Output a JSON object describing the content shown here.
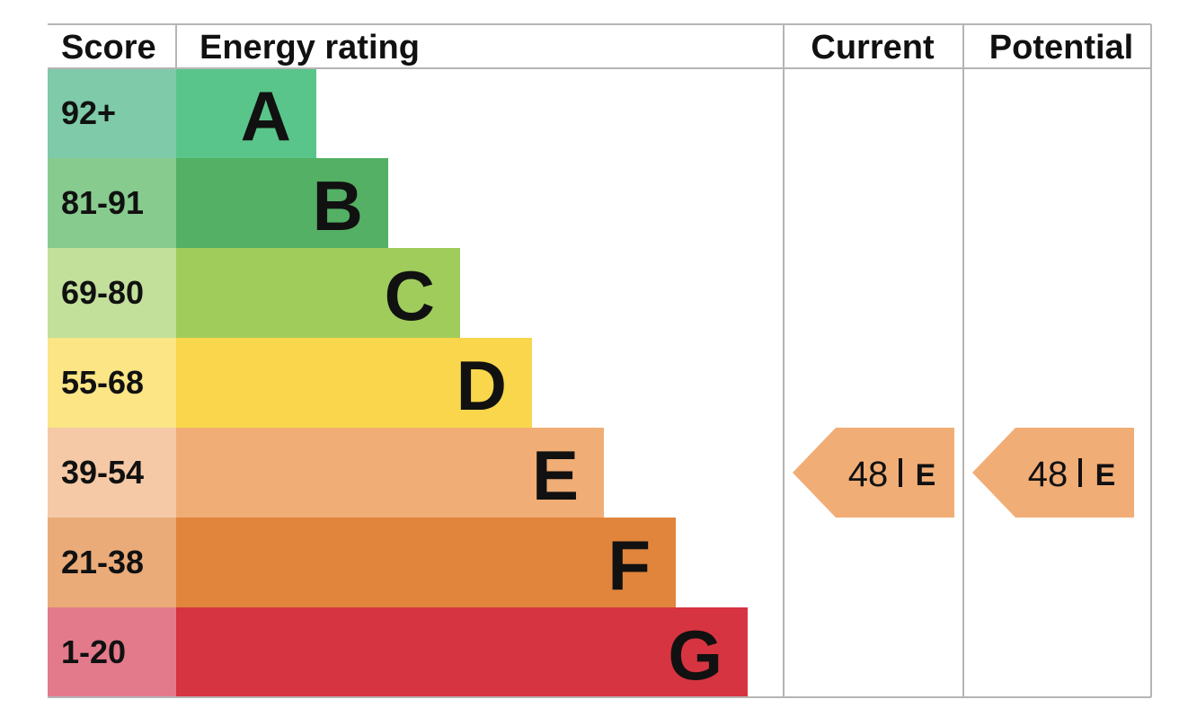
{
  "header": {
    "score": "Score",
    "energy_rating": "Energy rating",
    "current": "Current",
    "potential": "Potential"
  },
  "chart_data": {
    "type": "bar",
    "categories": [
      "A",
      "B",
      "C",
      "D",
      "E",
      "F",
      "G"
    ],
    "score_ranges": [
      "92+",
      "81-91",
      "69-80",
      "55-68",
      "39-54",
      "21-38",
      "1-20"
    ],
    "bar_colors": [
      "#59c58a",
      "#53b064",
      "#a0cc5c",
      "#f9d64b",
      "#f1ad76",
      "#e0853b",
      "#d63441"
    ],
    "score_cell_colors": [
      "#7ecaa9",
      "#87cb8f",
      "#c2e09a",
      "#fbe585",
      "#f5c9a6",
      "#eaab79",
      "#e37a8b"
    ],
    "current": {
      "value": "48",
      "band": "E",
      "color": "#f1ad76"
    },
    "potential": {
      "value": "48",
      "band": "E",
      "color": "#f1ad76"
    }
  }
}
